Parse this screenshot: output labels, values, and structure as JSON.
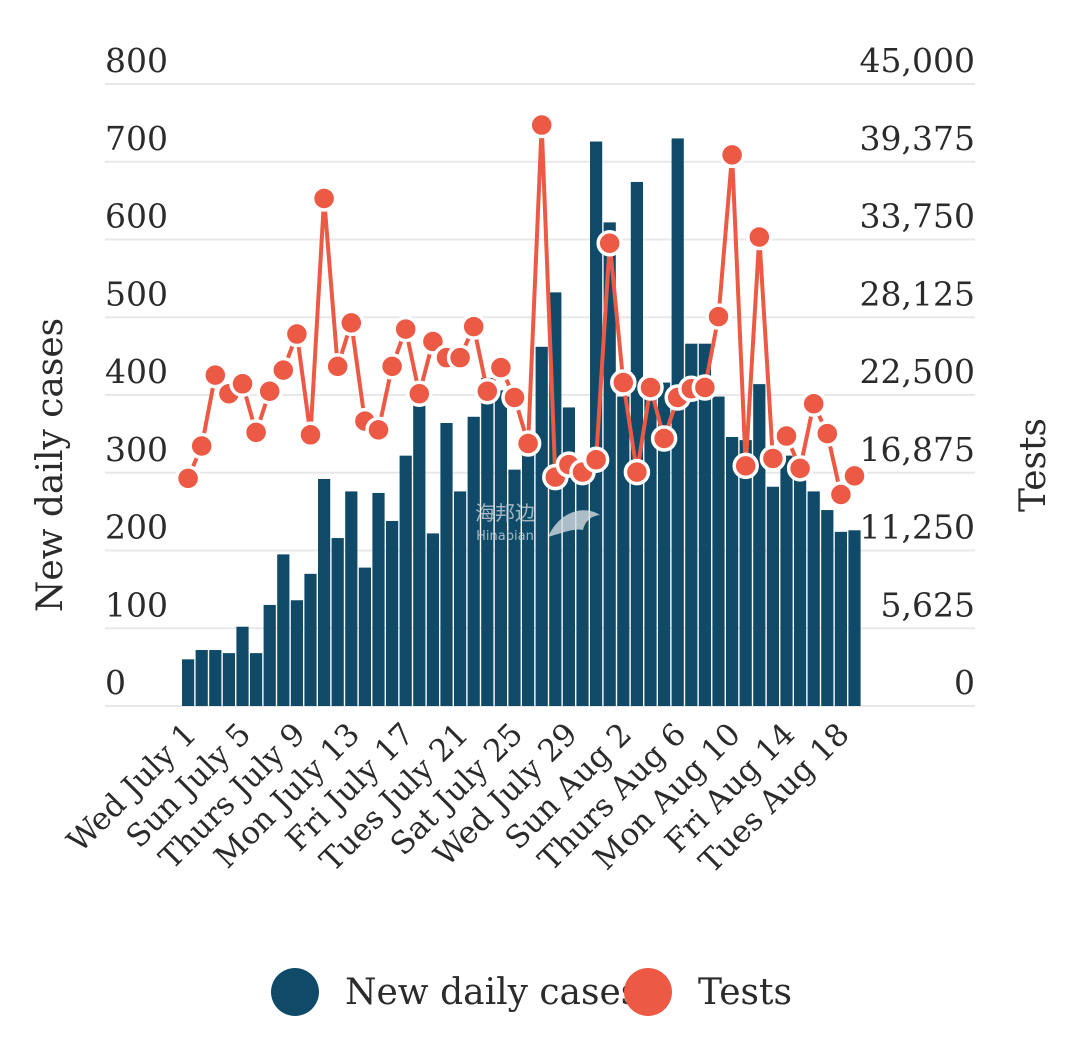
{
  "chart_data": {
    "type": "bar+line",
    "title": "",
    "colors": {
      "cases": "#0f4a68",
      "tests": "#ec5a45",
      "grid": "#e8e8e8",
      "text": "#2b2b2b"
    },
    "y_left": {
      "label": "New daily cases",
      "range": [
        0,
        800
      ],
      "ticks": [
        "800",
        "700",
        "600",
        "500",
        "400",
        "300",
        "200",
        "100",
        "0"
      ]
    },
    "y_right": {
      "label": "Tests",
      "range": [
        0,
        45000
      ],
      "ticks": [
        "45,000",
        "39,375",
        "33,750",
        "28,125",
        "22,500",
        "16,875",
        "11,250",
        "5,625",
        "0"
      ]
    },
    "x_tick_labels": [
      "Wed July 1",
      "Sun July 5",
      "Thurs July 9",
      "Mon July 13",
      "Fri July 17",
      "Tues July 21",
      "Sat July 25",
      "Wed July 29",
      "Sun Aug 2",
      "Thurs Aug 6",
      "Mon Aug 10",
      "Fri Aug 14",
      "Tues Aug 18"
    ],
    "categories": [
      "Wed July 1",
      "Thu July 2",
      "Fri July 3",
      "Sat July 4",
      "Sun July 5",
      "Mon July 6",
      "Tues July 7",
      "Wed July 8",
      "Thurs July 9",
      "Fri July 10",
      "Sat July 11",
      "Sun July 12",
      "Mon July 13",
      "Tues July 14",
      "Wed July 15",
      "Thurs July 16",
      "Fri July 17",
      "Sat July 18",
      "Sun July 19",
      "Mon July 20",
      "Tues July 21",
      "Wed July 22",
      "Thurs July 23",
      "Fri July 24",
      "Sat July 25",
      "Sun July 26",
      "Mon July 27",
      "Tues July 28",
      "Wed July 29",
      "Thurs July 30",
      "Fri July 31",
      "Sat Aug 1",
      "Sun Aug 2",
      "Mon Aug 3",
      "Tues Aug 4",
      "Wed Aug 5",
      "Thurs Aug 6",
      "Fri Aug 7",
      "Sat Aug 8",
      "Sun Aug 9",
      "Mon Aug 10",
      "Tues Aug 11",
      "Wed Aug 12",
      "Thurs Aug 13",
      "Fri Aug 14",
      "Sat Aug 15",
      "Sun Aug 16",
      "Mon Aug 17",
      "Tues Aug 18",
      "Wed Aug 19"
    ],
    "series": [
      {
        "name": "New daily cases",
        "type": "bar",
        "axis": "left",
        "values": [
          60,
          72,
          72,
          68,
          102,
          68,
          130,
          195,
          136,
          170,
          292,
          216,
          276,
          178,
          274,
          238,
          322,
          412,
          222,
          364,
          276,
          372,
          422,
          406,
          304,
          348,
          462,
          532,
          384,
          302,
          726,
          622,
          398,
          674,
          420,
          416,
          730,
          466,
          466,
          398,
          346,
          342,
          414,
          282,
          322,
          306,
          276,
          252,
          224,
          226
        ]
      },
      {
        "name": "Tests",
        "type": "line",
        "axis": "right",
        "values": [
          16470,
          18810,
          23940,
          22590,
          23310,
          19800,
          22770,
          24300,
          26910,
          19620,
          36720,
          24570,
          27720,
          20610,
          19980,
          24570,
          27270,
          22590,
          26370,
          25200,
          25200,
          27450,
          22770,
          24480,
          22320,
          18990,
          42030,
          16560,
          17460,
          16920,
          17820,
          33480,
          23400,
          16920,
          23040,
          19350,
          22320,
          22950,
          23040,
          28170,
          39870,
          17370,
          33930,
          17910,
          19530,
          17190,
          21870,
          19710,
          15300,
          16650
        ]
      }
    ]
  },
  "legend": [
    {
      "label": "New daily cases",
      "color_key": "cases"
    },
    {
      "label": "Tests",
      "color_key": "tests"
    }
  ],
  "watermark": {
    "line1": "海邦边",
    "line2": "Hinabian"
  }
}
